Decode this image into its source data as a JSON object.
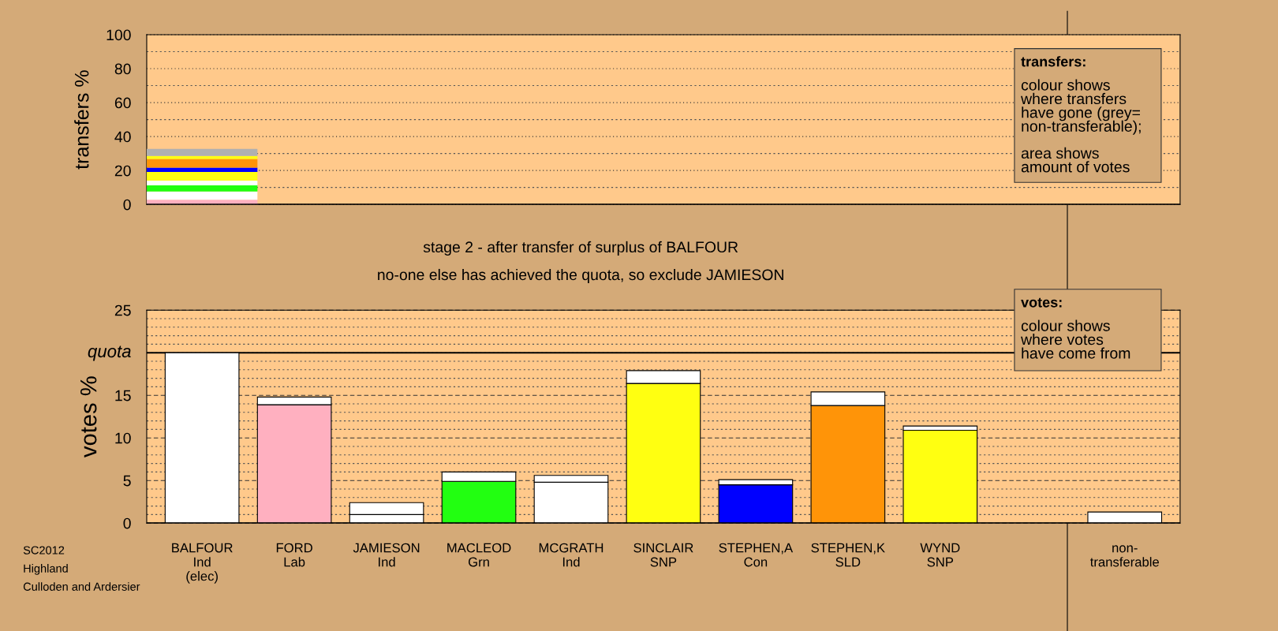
{
  "chart_data": [
    {
      "type": "bar",
      "stacked": true,
      "ylabel": "transfers %",
      "tick_labels": "y",
      "grid": "y",
      "categories": [
        null,
        null,
        null,
        null,
        null,
        null,
        null,
        null,
        null,
        null,
        null
      ],
      "ylim": [
        0,
        100
      ],
      "yticks": [
        0,
        {
          "value": 10,
          "label": null
        },
        20,
        {
          "value": 30,
          "label": null
        },
        40,
        {
          "value": 50,
          "label": null
        },
        60,
        {
          "value": 70,
          "label": null
        },
        80,
        {
          "value": 90,
          "label": null
        },
        100
      ],
      "series": [
        {
          "color": "#ffb0c0",
          "values": [
            2.8,
            null,
            null,
            null,
            null,
            null,
            null,
            null,
            null,
            null,
            null
          ]
        },
        {
          "color": "#ffffff",
          "values": [
            4.9,
            null,
            null,
            null,
            null,
            null,
            null,
            null,
            null,
            null,
            null
          ]
        },
        {
          "color": "#22ff11",
          "values": [
            3.6,
            null,
            null,
            null,
            null,
            null,
            null,
            null,
            null,
            null,
            null
          ]
        },
        {
          "color": "#ffffff",
          "values": [
            2.7,
            null,
            null,
            null,
            null,
            null,
            null,
            null,
            null,
            null,
            null
          ]
        },
        {
          "color": "#ffff11",
          "values": [
            5.1,
            null,
            null,
            null,
            null,
            null,
            null,
            null,
            null,
            null,
            null
          ]
        },
        {
          "color": "#0000ff",
          "values": [
            2.6,
            null,
            null,
            null,
            null,
            null,
            null,
            null,
            null,
            null,
            null
          ]
        },
        {
          "color": "#ff9408",
          "values": [
            5.1,
            null,
            null,
            null,
            null,
            null,
            null,
            null,
            null,
            null,
            null
          ]
        },
        {
          "color": "#ffff11",
          "values": [
            1.7,
            null,
            null,
            null,
            null,
            null,
            null,
            null,
            null,
            null,
            null
          ]
        },
        {
          "color": "#b0b0b0",
          "values": [
            4.2,
            null,
            null,
            null,
            null,
            null,
            null,
            null,
            null,
            null,
            null
          ]
        }
      ],
      "annotations": [
        "transfers:",
        "colour shows\nwhere transfers\nhave gone (grey=\nnon-transferable);",
        "area shows\namount of votes"
      ]
    },
    {
      "type": "bar",
      "stacked": true,
      "title": "stage 2 - after transfer of surplus of BALFOUR",
      "subtitle": "no-one else has achieved the quota, so exclude JAMIESON",
      "ylabel": "votes %",
      "grid": "y",
      "categories": [
        "BALFOUR\nInd\n(elec)",
        "FORD\nLab",
        "JAMIESON\nInd",
        "MACLEOD\nGrn",
        "MCGRATH\nInd",
        "SINCLAIR\nSNP",
        "STEPHEN,A\nCon",
        "STEPHEN,K\nSLD",
        "WYND\nSNP",
        null,
        "non-\ntransferable"
      ],
      "ylim": [
        0,
        25
      ],
      "yticks": [
        0,
        {
          "value": 1,
          "label": null
        },
        {
          "value": 2,
          "label": null
        },
        {
          "value": 3,
          "label": null
        },
        {
          "value": 4,
          "label": null
        },
        5,
        {
          "value": 6,
          "label": null
        },
        {
          "value": 7,
          "label": null
        },
        {
          "value": 8,
          "label": null
        },
        {
          "value": 9,
          "label": null
        },
        10,
        {
          "value": 11,
          "label": null
        },
        {
          "value": 12,
          "label": null
        },
        {
          "value": 13,
          "label": null
        },
        {
          "value": 14,
          "label": null
        },
        15,
        {
          "value": 16,
          "label": null
        },
        {
          "value": 17,
          "label": null
        },
        {
          "value": 18,
          "label": null
        },
        {
          "value": 19,
          "label": null
        },
        {
          "value": 20,
          "label": null
        },
        {
          "value": 21,
          "label": null
        },
        {
          "value": 22,
          "label": null
        },
        {
          "value": 23,
          "label": null
        },
        {
          "value": 24,
          "label": null
        },
        25
      ],
      "ref_lines": [
        {
          "axis": "y",
          "value": 20,
          "label": "quota",
          "color": "#000000",
          "line_style": "solid"
        }
      ],
      "series": [
        {
          "colors": [
            "#ffffff",
            "#ffb0c0",
            "#ffffff",
            "#22ff11",
            "#ffffff",
            "#ffff11",
            "#0000ff",
            "#ff9408",
            "#ffff11",
            null,
            null
          ],
          "values": [
            20.0,
            13.9,
            1.0,
            4.9,
            4.8,
            16.4,
            4.5,
            13.8,
            10.9,
            null,
            null
          ]
        },
        {
          "color": "#ffffff",
          "values": [
            null,
            0.9,
            1.4,
            1.1,
            0.8,
            1.5,
            0.6,
            1.6,
            0.5,
            null,
            1.3
          ]
        }
      ],
      "annotations": [
        "votes:",
        "colour shows\nwhere votes\nhave come from",
        "SC2012\nHighland\nCulloden and Ardersier"
      ]
    }
  ]
}
